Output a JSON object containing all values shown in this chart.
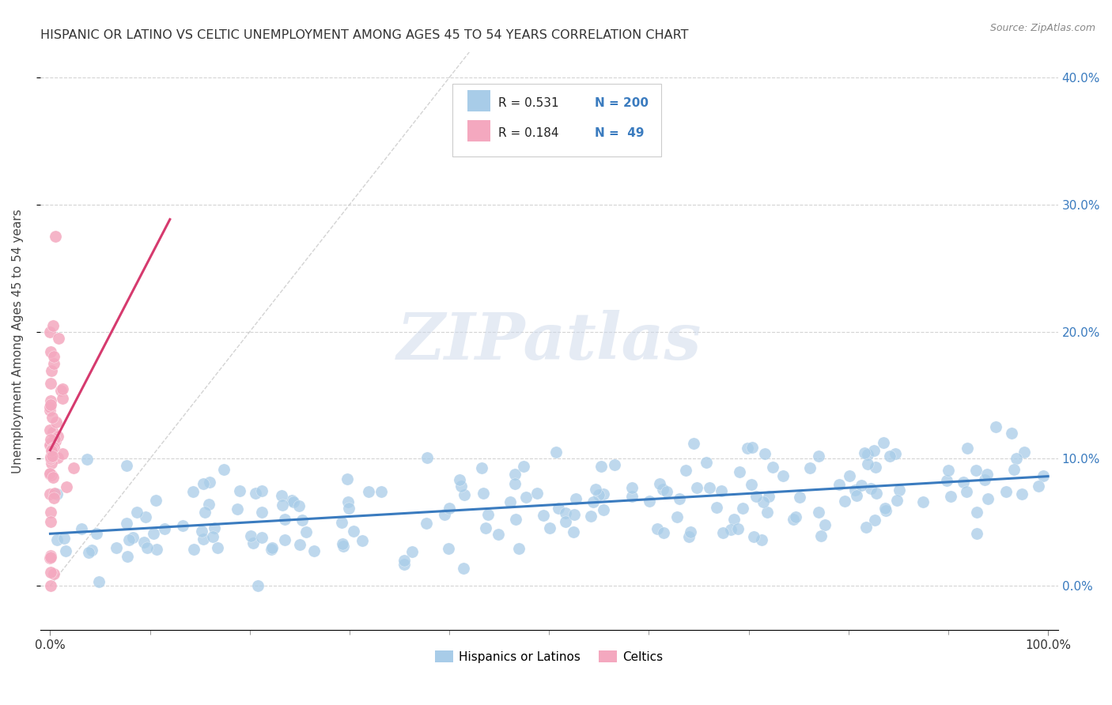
{
  "title": "HISPANIC OR LATINO VS CELTIC UNEMPLOYMENT AMONG AGES 45 TO 54 YEARS CORRELATION CHART",
  "source": "Source: ZipAtlas.com",
  "ylabel": "Unemployment Among Ages 45 to 54 years",
  "xlim": [
    -0.01,
    1.01
  ],
  "ylim": [
    -0.035,
    0.42
  ],
  "xticks": [
    0.0,
    1.0
  ],
  "xticklabels": [
    "0.0%",
    "100.0%"
  ],
  "yticks": [
    0.0,
    0.1,
    0.2,
    0.3,
    0.4
  ],
  "yticklabels": [
    "0.0%",
    "10.0%",
    "20.0%",
    "30.0%",
    "40.0%"
  ],
  "blue_color": "#a8cce8",
  "pink_color": "#f4a8bf",
  "blue_line_color": "#3a7bbf",
  "pink_line_color": "#d63a6e",
  "diag_line_color": "#c8c8c8",
  "R_blue": 0.531,
  "N_blue": 200,
  "R_pink": 0.184,
  "N_pink": 49,
  "legend_blue_label": "Hispanics or Latinos",
  "legend_pink_label": "Celtics",
  "watermark": "ZIPatlas",
  "title_fontsize": 11.5,
  "axis_label_fontsize": 11,
  "tick_fontsize": 11,
  "right_ytick_color": "#3a7bbf",
  "background_color": "#ffffff",
  "grid_color": "#d0d0d0",
  "seed": 99
}
